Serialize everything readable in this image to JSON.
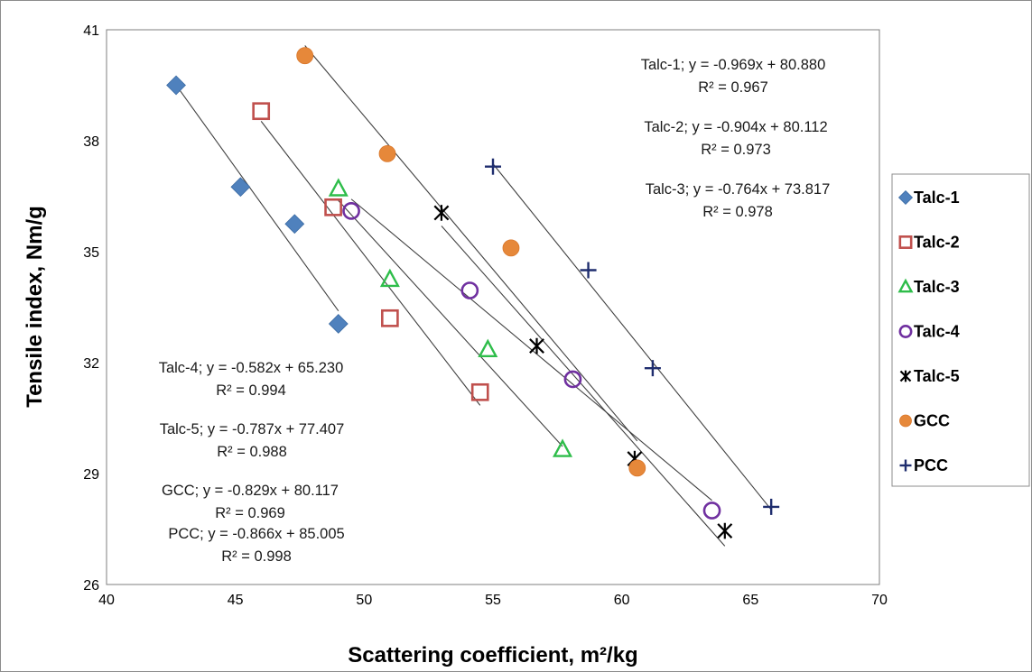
{
  "chart_data": {
    "type": "scatter",
    "xlabel": "Scattering coefficient, m²/kg",
    "ylabel": "Tensile index, Nm/g",
    "xlim": [
      40,
      70
    ],
    "ylim": [
      26,
      41
    ],
    "x_ticks": [
      "40",
      "45",
      "50",
      "55",
      "60",
      "65",
      "70"
    ],
    "y_ticks": [
      "26",
      "29",
      "32",
      "35",
      "38",
      "41"
    ],
    "grid": false,
    "legend_position": "right",
    "series": [
      {
        "name": "Talc-1",
        "marker": "diamond-filled",
        "color": "#4f81bd",
        "x": [
          42.7,
          45.2,
          47.3,
          49.0
        ],
        "y": [
          39.5,
          36.75,
          35.75,
          33.05
        ],
        "trendline": {
          "slope": -0.969,
          "intercept": 80.88,
          "x_range": [
            42.7,
            49.0
          ]
        },
        "equation": "Talc-1; y = -0.969x + 80.880",
        "r2": "R² = 0.967"
      },
      {
        "name": "Talc-2",
        "marker": "square-open",
        "color": "#c0504d",
        "x": [
          46.0,
          48.8,
          51.0,
          54.5
        ],
        "y": [
          38.8,
          36.2,
          33.2,
          31.2
        ],
        "trendline": {
          "slope": -0.904,
          "intercept": 80.112,
          "x_range": [
            46.0,
            54.5
          ]
        },
        "equation": "Talc-2; y = -0.904x + 80.112",
        "r2": "R² = 0.973"
      },
      {
        "name": "Talc-3",
        "marker": "triangle-open",
        "color": "#2ebd4a",
        "x": [
          49.0,
          51.0,
          54.8,
          57.7
        ],
        "y": [
          36.7,
          34.25,
          32.35,
          29.65
        ],
        "trendline": {
          "slope": -0.764,
          "intercept": 73.817,
          "x_range": [
            49.0,
            57.7
          ]
        },
        "equation": "Talc-3; y = -0.764x + 73.817",
        "r2": "R² = 0.978"
      },
      {
        "name": "Talc-4",
        "marker": "circle-open",
        "color": "#7030a0",
        "x": [
          49.5,
          54.1,
          58.1,
          63.5
        ],
        "y": [
          36.1,
          33.95,
          31.55,
          28.0
        ],
        "trendline": {
          "slope": -0.582,
          "intercept": 65.23,
          "x_range": [
            49.5,
            63.5
          ]
        },
        "equation": "Talc-4; y = -0.582x + 65.230",
        "r2": "R² = 0.994"
      },
      {
        "name": "Talc-5",
        "marker": "star",
        "color": "#000000",
        "x": [
          53.0,
          56.7,
          60.5,
          64.0
        ],
        "y": [
          36.05,
          32.45,
          29.4,
          27.45
        ],
        "trendline": {
          "slope": -0.787,
          "intercept": 77.407,
          "x_range": [
            53.0,
            64.0
          ]
        },
        "equation": "Talc-5; y = -0.787x + 77.407",
        "r2": "R² = 0.988"
      },
      {
        "name": "GCC",
        "marker": "circle-filled",
        "color": "#e6883a",
        "x": [
          47.7,
          50.9,
          55.7,
          60.6
        ],
        "y": [
          40.3,
          37.65,
          35.1,
          29.15
        ],
        "trendline": {
          "slope": -0.829,
          "intercept": 80.117,
          "x_range": [
            47.7,
            60.6
          ]
        },
        "equation": "GCC; y = -0.829x + 80.117",
        "r2": "R² = 0.969"
      },
      {
        "name": "PCC",
        "marker": "plus",
        "color": "#1f2d6e",
        "x": [
          55.0,
          58.7,
          61.2,
          65.8
        ],
        "y": [
          37.3,
          34.5,
          31.85,
          28.1
        ],
        "trendline": {
          "slope": -0.866,
          "intercept": 85.005,
          "x_range": [
            55.0,
            65.8
          ]
        },
        "equation": "PCC; y = -0.866x + 85.005",
        "r2": "R² = 0.998"
      }
    ]
  }
}
